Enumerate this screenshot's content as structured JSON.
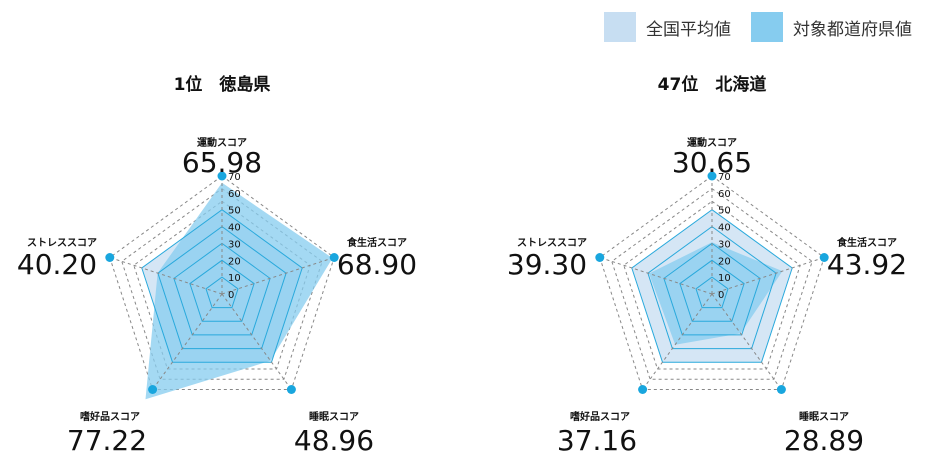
{
  "legend": {
    "national_label": "全国平均値",
    "prefecture_label": "対象都道府県値",
    "national_color": "#c7def2",
    "prefecture_color": "#86ccef"
  },
  "colors": {
    "accent": "#19a6de",
    "national_fill": "#c7def2",
    "prefecture_fill": "#86ccef",
    "grid_dashed": "#888888",
    "grid_solid": "#29a9dc"
  },
  "chart_data": [
    {
      "type": "radar",
      "title": "1位　徳島県",
      "axes": [
        "運動スコア",
        "食生活スコア",
        "睡眠スコア",
        "嗜好品スコア",
        "ストレススコア"
      ],
      "ticks": [
        0,
        10,
        20,
        30,
        40,
        50,
        60,
        70
      ],
      "series": [
        {
          "name": "全国平均値",
          "values": [
            50,
            50,
            50,
            50,
            50
          ]
        },
        {
          "name": "対象都道府県値",
          "values": [
            65.98,
            68.9,
            48.96,
            77.22,
            40.2
          ]
        }
      ],
      "value_labels": [
        "65.98",
        "68.90",
        "48.96",
        "77.22",
        "40.20"
      ]
    },
    {
      "type": "radar",
      "title": "47位　北海道",
      "axes": [
        "運動スコア",
        "食生活スコア",
        "睡眠スコア",
        "嗜好品スコア",
        "ストレススコア"
      ],
      "ticks": [
        0,
        10,
        20,
        30,
        40,
        50,
        60,
        70
      ],
      "series": [
        {
          "name": "全国平均値",
          "values": [
            50,
            50,
            50,
            50,
            50
          ]
        },
        {
          "name": "対象都道府県値",
          "values": [
            30.65,
            43.92,
            28.89,
            37.16,
            39.3
          ]
        }
      ],
      "value_labels": [
        "30.65",
        "43.92",
        "28.89",
        "37.16",
        "39.30"
      ]
    }
  ]
}
